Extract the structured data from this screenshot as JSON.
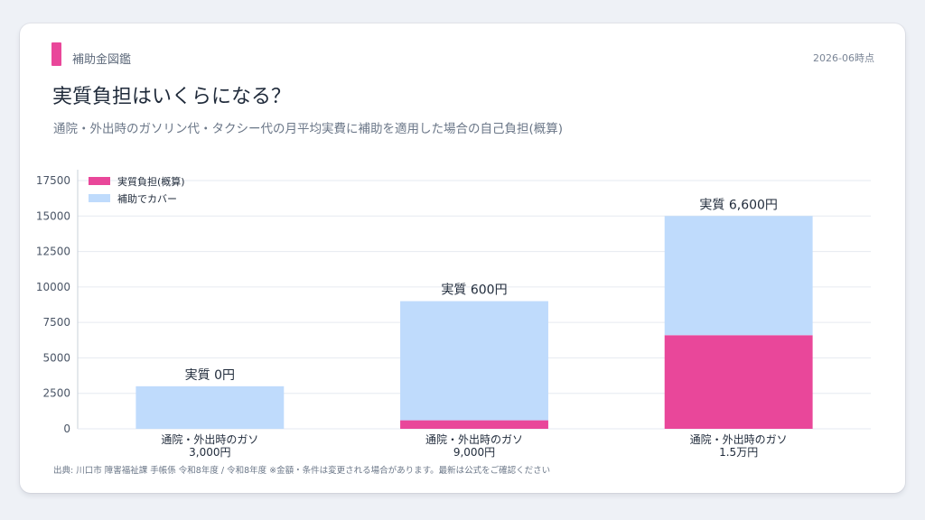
{
  "header": {
    "brand": "補助金図鑑",
    "as_of": "2026-06時点",
    "title": "実質負担はいくらになる？",
    "subtitle": "通院・外出時のガソリン代・タクシー代の月平均実費に補助を適用した場合の自己負担(概算)"
  },
  "footer": {
    "source": "出典: 川口市 障害福祉課 手帳係 令和8年度 / 令和8年度 ※金額・条件は変更される場合があります。最新は公式をご確認ください"
  },
  "colors": {
    "accent": "#e9479a",
    "burden": "#e9479a",
    "covered": "#bfdbfc"
  },
  "chart_data": {
    "type": "bar",
    "stacked": true,
    "categories": [
      [
        "通院・外出時のガソ",
        "3,000円"
      ],
      [
        "通院・外出時のガソ",
        "9,000円"
      ],
      [
        "通院・外出時のガソ",
        "1.5万円"
      ]
    ],
    "series": [
      {
        "name": "実質負担(概算)",
        "values": [
          0,
          600,
          6600
        ]
      },
      {
        "name": "補助でカバー",
        "values": [
          3000,
          8400,
          8400
        ]
      }
    ],
    "data_labels": [
      "実質 0円",
      "実質 600円",
      "実質 6,600円"
    ],
    "ylim": [
      0,
      17500
    ],
    "yticks": [
      0,
      2500,
      5000,
      7500,
      10000,
      12500,
      15000,
      17500
    ],
    "grid": true,
    "legend_position": "top-left"
  }
}
